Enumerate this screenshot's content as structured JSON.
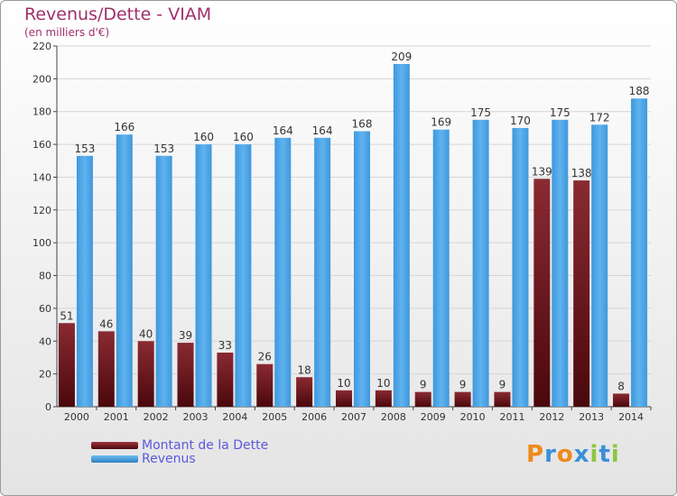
{
  "title": "Revenus/Dette - VIAM",
  "subtitle": "(en milliers d'€)",
  "colors": {
    "title": "#a0306a",
    "dette": "#7a1c22",
    "revenus": "#4aa3e6",
    "legend_text": "#5a5adc",
    "axis_text": "#333333"
  },
  "chart_data": {
    "type": "bar",
    "categories": [
      "2000",
      "2001",
      "2002",
      "2003",
      "2004",
      "2005",
      "2006",
      "2007",
      "2008",
      "2009",
      "2010",
      "2011",
      "2012",
      "2013",
      "2014"
    ],
    "series": [
      {
        "name": "Montant de la Dette",
        "values": [
          51,
          46,
          40,
          39,
          33,
          26,
          18,
          10,
          10,
          9,
          9,
          9,
          139,
          138,
          8
        ]
      },
      {
        "name": "Revenus",
        "values": [
          153,
          166,
          153,
          160,
          160,
          164,
          164,
          168,
          209,
          169,
          175,
          170,
          175,
          172,
          188
        ]
      }
    ],
    "ylim": [
      0,
      220
    ],
    "yticks": [
      0,
      20,
      40,
      60,
      80,
      100,
      120,
      140,
      160,
      180,
      200,
      220
    ],
    "grid": true,
    "legend": "bottom-left"
  },
  "logo": {
    "letters": [
      "P",
      "r",
      "o",
      "x",
      "i",
      "t",
      "i"
    ],
    "colors": [
      "#f08a1c",
      "#3a8fd8",
      "#f08a1c",
      "#3a8fd8",
      "#8cc63e",
      "#3a8fd8",
      "#8cc63e"
    ]
  }
}
